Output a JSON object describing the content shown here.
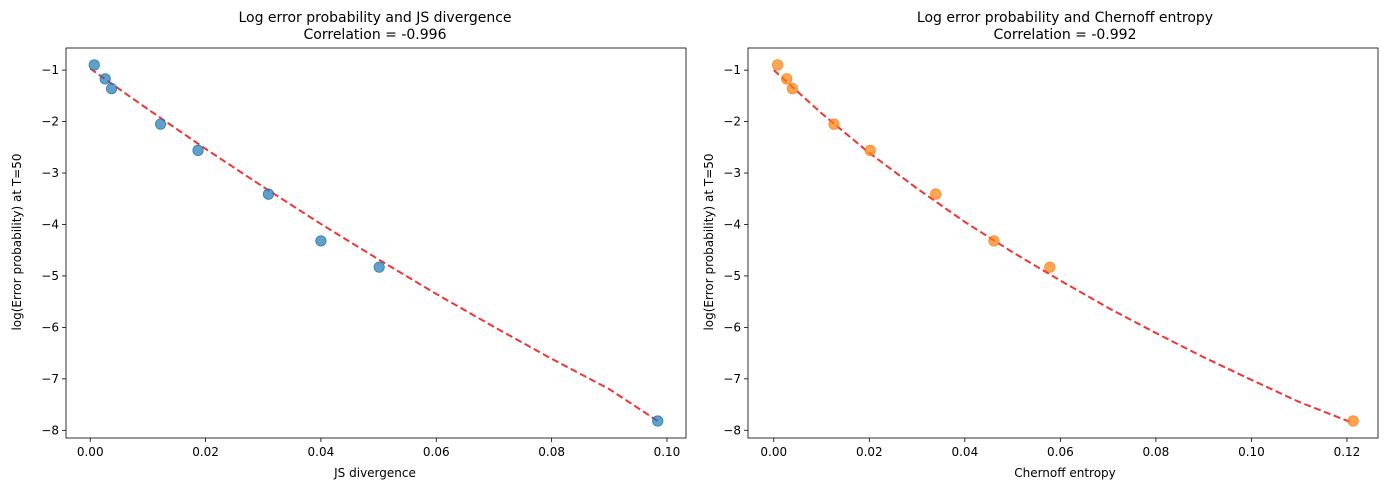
{
  "chart_data": [
    {
      "type": "scatter",
      "title_line1": "Log error probability and JS divergence",
      "title_line2": "Correlation = -0.996",
      "xlabel": "JS divergence",
      "ylabel": "log(Error probability) at T=50",
      "xlim": [
        -0.0042,
        0.1033
      ],
      "ylim": [
        -8.15,
        -0.57
      ],
      "xticks": [
        0.0,
        0.02,
        0.04,
        0.06,
        0.08,
        0.1
      ],
      "xtick_labels": [
        "0.00",
        "0.02",
        "0.04",
        "0.06",
        "0.08",
        "0.10"
      ],
      "yticks": [
        -1,
        -2,
        -3,
        -4,
        -5,
        -6,
        -7,
        -8
      ],
      "ytick_labels": [
        "−1",
        "−2",
        "−3",
        "−4",
        "−5",
        "−6",
        "−7",
        "−8"
      ],
      "point_color": "#1f77b4",
      "fit_color": "#ee1111",
      "x": [
        0.0007,
        0.0026,
        0.0037,
        0.0122,
        0.0187,
        0.0309,
        0.04,
        0.0501,
        0.0984
      ],
      "y": [
        -0.9,
        -1.17,
        -1.36,
        -2.05,
        -2.56,
        -3.41,
        -4.32,
        -4.83,
        -7.82
      ],
      "fit_curve": {
        "x": [
          0.0,
          0.01,
          0.02,
          0.03,
          0.04,
          0.05,
          0.06,
          0.07,
          0.08,
          0.09,
          0.0984
        ],
        "y": [
          -0.97,
          -1.76,
          -2.53,
          -3.27,
          -3.99,
          -4.68,
          -5.35,
          -5.99,
          -6.61,
          -7.2,
          -7.82
        ]
      }
    },
    {
      "type": "scatter",
      "title_line1": "Log error probability and Chernoff entropy",
      "title_line2": "Correlation = -0.992",
      "xlabel": "Chernoff entropy",
      "ylabel": "log(Error probability) at T=50",
      "xlim": [
        -0.0054,
        0.1265
      ],
      "ylim": [
        -8.15,
        -0.57
      ],
      "xticks": [
        0.0,
        0.02,
        0.04,
        0.06,
        0.08,
        0.1,
        0.12
      ],
      "xtick_labels": [
        "0.00",
        "0.02",
        "0.04",
        "0.06",
        "0.08",
        "0.10",
        "0.12"
      ],
      "yticks": [
        -1,
        -2,
        -3,
        -4,
        -5,
        -6,
        -7,
        -8
      ],
      "ytick_labels": [
        "−1",
        "−2",
        "−3",
        "−4",
        "−5",
        "−6",
        "−7",
        "−8"
      ],
      "point_color": "#ff7f0e",
      "fit_color": "#ee1111",
      "x": [
        0.0008,
        0.0027,
        0.0039,
        0.0126,
        0.0202,
        0.0339,
        0.0461,
        0.0578,
        0.1213
      ],
      "y": [
        -0.9,
        -1.17,
        -1.36,
        -2.05,
        -2.56,
        -3.41,
        -4.32,
        -4.83,
        -7.82
      ],
      "fit_curve": {
        "x": [
          0.0,
          0.01,
          0.02,
          0.03,
          0.04,
          0.05,
          0.06,
          0.07,
          0.08,
          0.09,
          0.1,
          0.11,
          0.1213
        ],
        "y": [
          -1.0,
          -1.84,
          -2.61,
          -3.3,
          -3.95,
          -4.54,
          -5.09,
          -5.62,
          -6.11,
          -6.58,
          -7.02,
          -7.45,
          -7.86
        ]
      }
    }
  ]
}
